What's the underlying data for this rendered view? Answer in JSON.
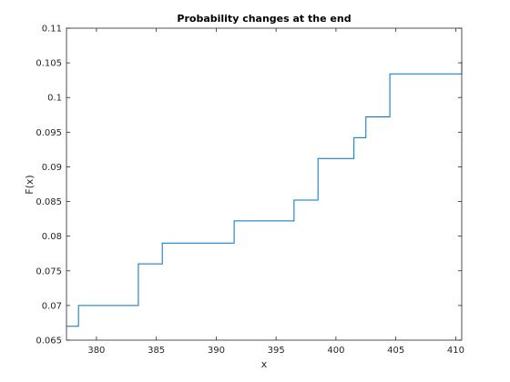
{
  "chart_data": {
    "type": "line",
    "step": true,
    "title": "Probability changes at the end",
    "xlabel": "x",
    "ylabel": "F(x)",
    "xlim": [
      377.5,
      410.5
    ],
    "ylim": [
      0.065,
      0.11
    ],
    "xticks": [
      380,
      385,
      390,
      395,
      400,
      405,
      410
    ],
    "xtick_labels": [
      "380",
      "385",
      "390",
      "395",
      "400",
      "405",
      "410"
    ],
    "yticks": [
      0.065,
      0.07,
      0.075,
      0.08,
      0.085,
      0.09,
      0.095,
      0.1,
      0.105,
      0.11
    ],
    "ytick_labels": [
      "0.065",
      "0.07",
      "0.075",
      "0.08",
      "0.085",
      "0.09",
      "0.095",
      "0.1",
      "0.105",
      "0.11"
    ],
    "grid": false,
    "series": [
      {
        "color": "#0072bd",
        "x": [
          377.5,
          378.5,
          383.5,
          385.5,
          391.5,
          396.5,
          398.5,
          401.5,
          402.5,
          404.5,
          410.5
        ],
        "y": [
          0.067,
          0.07,
          0.076,
          0.079,
          0.0822,
          0.0852,
          0.0912,
          0.0942,
          0.0972,
          0.1034,
          0.1052
        ]
      }
    ]
  }
}
